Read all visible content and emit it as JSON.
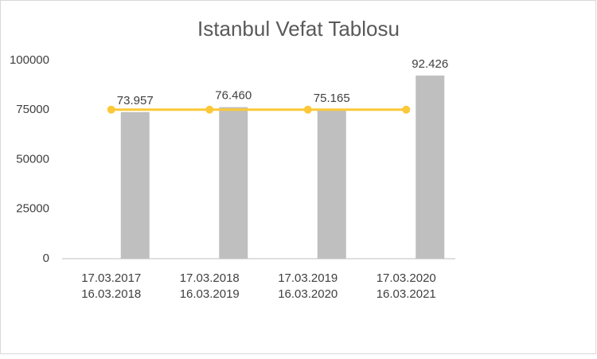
{
  "chart_data": {
    "type": "bar",
    "title": "Istanbul Vefat Tablosu",
    "categories": [
      [
        "17.03.2017",
        "16.03.2018"
      ],
      [
        "17.03.2018",
        "16.03.2019"
      ],
      [
        "17.03.2019",
        "16.03.2020"
      ],
      [
        "17.03.2020",
        "16.03.2021"
      ]
    ],
    "series": [
      {
        "type": "bar",
        "color": "#bfbfbf",
        "values": [
          73957,
          76460,
          75165,
          92426
        ],
        "value_labels": [
          "73.957",
          "76.460",
          "75.165",
          "92.426"
        ]
      },
      {
        "type": "line",
        "color": "#fcc838",
        "values": [
          75194,
          75194,
          75194,
          75194
        ]
      }
    ],
    "ylim": [
      0,
      100000
    ],
    "yticks": [
      0,
      25000,
      50000,
      75000,
      100000
    ],
    "grid": false
  }
}
